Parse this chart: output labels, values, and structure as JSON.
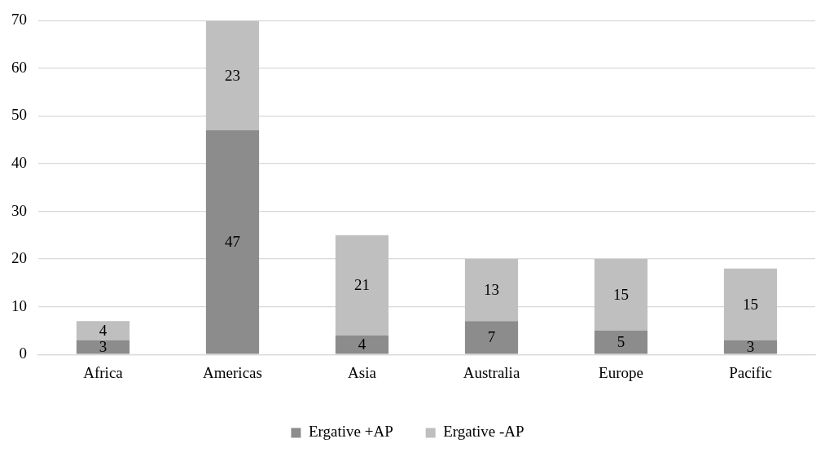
{
  "chart_data": {
    "type": "bar",
    "stacked": true,
    "categories": [
      "Africa",
      "Americas",
      "Asia",
      "Australia",
      "Europe",
      "Pacific"
    ],
    "series": [
      {
        "name": "Ergative +AP",
        "color": "#8c8c8c",
        "values": [
          3,
          47,
          4,
          7,
          5,
          3
        ]
      },
      {
        "name": "Ergative -AP",
        "color": "#bfbfbf",
        "values": [
          4,
          23,
          21,
          13,
          15,
          15
        ]
      }
    ],
    "ylim": [
      0,
      70
    ],
    "yticks": [
      0,
      10,
      20,
      30,
      40,
      50,
      60,
      70
    ],
    "grid": "y",
    "legend": "bottom",
    "data_labels": true
  }
}
